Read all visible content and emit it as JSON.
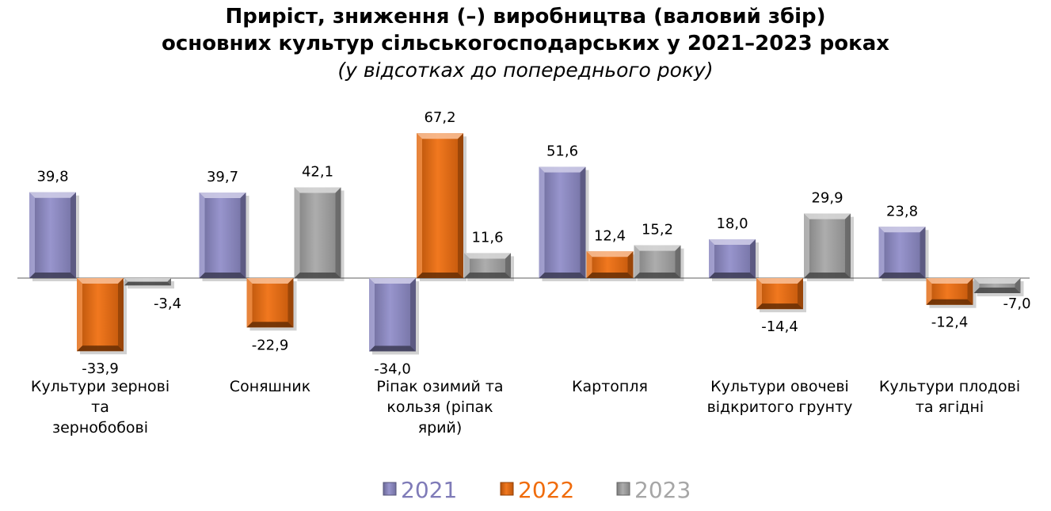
{
  "chart_data": {
    "type": "bar",
    "title": [
      "Приріст, зниження (–) виробництва (валовий збір)",
      "основних культур сільськогосподарських у 2021–2023 роках"
    ],
    "subtitle": "(у відсотках до попереднього року)",
    "categories": [
      [
        "Культури зернові",
        "та",
        "зернобобові"
      ],
      [
        "Соняшник"
      ],
      [
        "Ріпак озимий та",
        "кользя (ріпак",
        "ярий)"
      ],
      [
        "Картопля"
      ],
      [
        "Культури овочеві",
        "відкритого грунту"
      ],
      [
        "Культури плодові",
        "та ягідні"
      ]
    ],
    "series": [
      {
        "name": "2021",
        "color": "#8f8cc9",
        "values": [
          39.8,
          39.7,
          -34.0,
          51.6,
          18.0,
          23.8
        ],
        "labels": [
          "39,8",
          "39,7",
          "-34,0",
          "51,6",
          "18,0",
          "23,8"
        ]
      },
      {
        "name": "2022",
        "color": "#f06c0c",
        "values": [
          -33.9,
          -22.9,
          67.2,
          12.4,
          -14.4,
          -12.4
        ],
        "labels": [
          "-33,9",
          "-22,9",
          "67,2",
          "12,4",
          "-14,4",
          "-12,4"
        ]
      },
      {
        "name": "2023",
        "color": "#a6a6a6",
        "values": [
          -3.4,
          42.1,
          11.6,
          15.2,
          29.9,
          -7.0
        ],
        "labels": [
          "-3,4",
          "42,1",
          "11,6",
          "15,2",
          "29,9",
          "-7,0"
        ]
      }
    ],
    "legend_colors": [
      "#7f7bb8",
      "#f06c0c",
      "#a6a6a6"
    ],
    "legend_position": "bottom",
    "grid": false
  }
}
